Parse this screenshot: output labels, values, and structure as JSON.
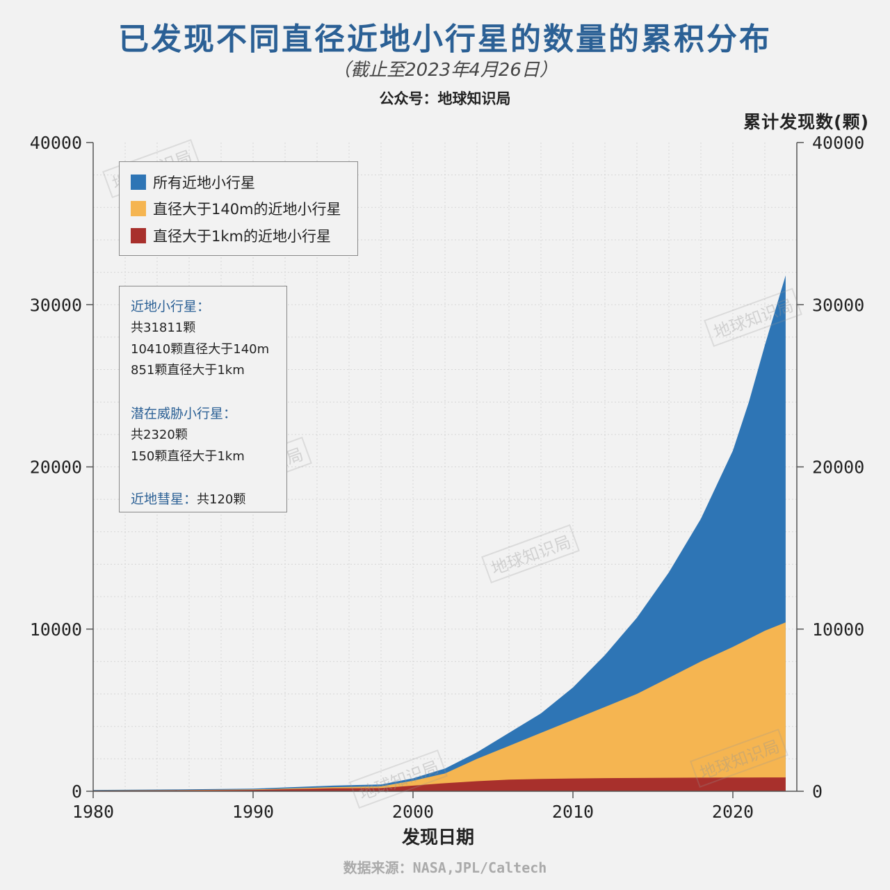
{
  "title": "已发现不同直径近地小行星的数量的累积分布",
  "subtitle": "（截止至2023年4月26日）",
  "account": "公众号：地球知识局",
  "source": "数据来源：NASA,JPL/Caltech",
  "watermark": "地球知识局",
  "info": {
    "neo_header": "近地小行星：",
    "neo_total": "共31811颗",
    "neo_140m": "10410颗直径大于140m",
    "neo_1km": "851颗直径大于1km",
    "pha_header": "潜在威胁小行星：",
    "pha_total": "共2320颗",
    "pha_1km": "150颗直径大于1km",
    "comet_header": "近地彗星：",
    "comet_total": "共120颗"
  },
  "chart_data": {
    "type": "area",
    "stacked": false,
    "xlabel": "发现日期",
    "ylabel_right": "累计发现数(颗)",
    "xlim": [
      1980,
      2024
    ],
    "ylim": [
      0,
      40000
    ],
    "x_ticks": [
      "1980",
      "1990",
      "2000",
      "2010",
      "2020"
    ],
    "y_ticks": [
      "0",
      "10000",
      "20000",
      "30000",
      "40000"
    ],
    "grid": true,
    "legend_position": "top-left",
    "x": [
      1980,
      1985,
      1990,
      1995,
      1998,
      2000,
      2002,
      2004,
      2006,
      2008,
      2010,
      2012,
      2014,
      2016,
      2018,
      2020,
      2021,
      2022,
      2023.3
    ],
    "series": [
      {
        "name": "所有近地小行星",
        "color": "#2e75b5",
        "values": [
          80,
          110,
          160,
          350,
          420,
          800,
          1400,
          2400,
          3600,
          4800,
          6400,
          8400,
          10700,
          13500,
          16800,
          21000,
          24000,
          27500,
          31811
        ]
      },
      {
        "name": "直径大于140m的近地小行星",
        "color": "#f5b551",
        "values": [
          50,
          70,
          110,
          250,
          300,
          650,
          1100,
          2000,
          2800,
          3600,
          4400,
          5200,
          6000,
          7000,
          8000,
          8900,
          9400,
          9900,
          10410
        ]
      },
      {
        "name": "直径大于1km的近地小行星",
        "color": "#a8302c",
        "values": [
          40,
          55,
          80,
          180,
          200,
          350,
          500,
          620,
          720,
          760,
          790,
          810,
          820,
          830,
          840,
          845,
          848,
          850,
          851
        ]
      }
    ]
  }
}
